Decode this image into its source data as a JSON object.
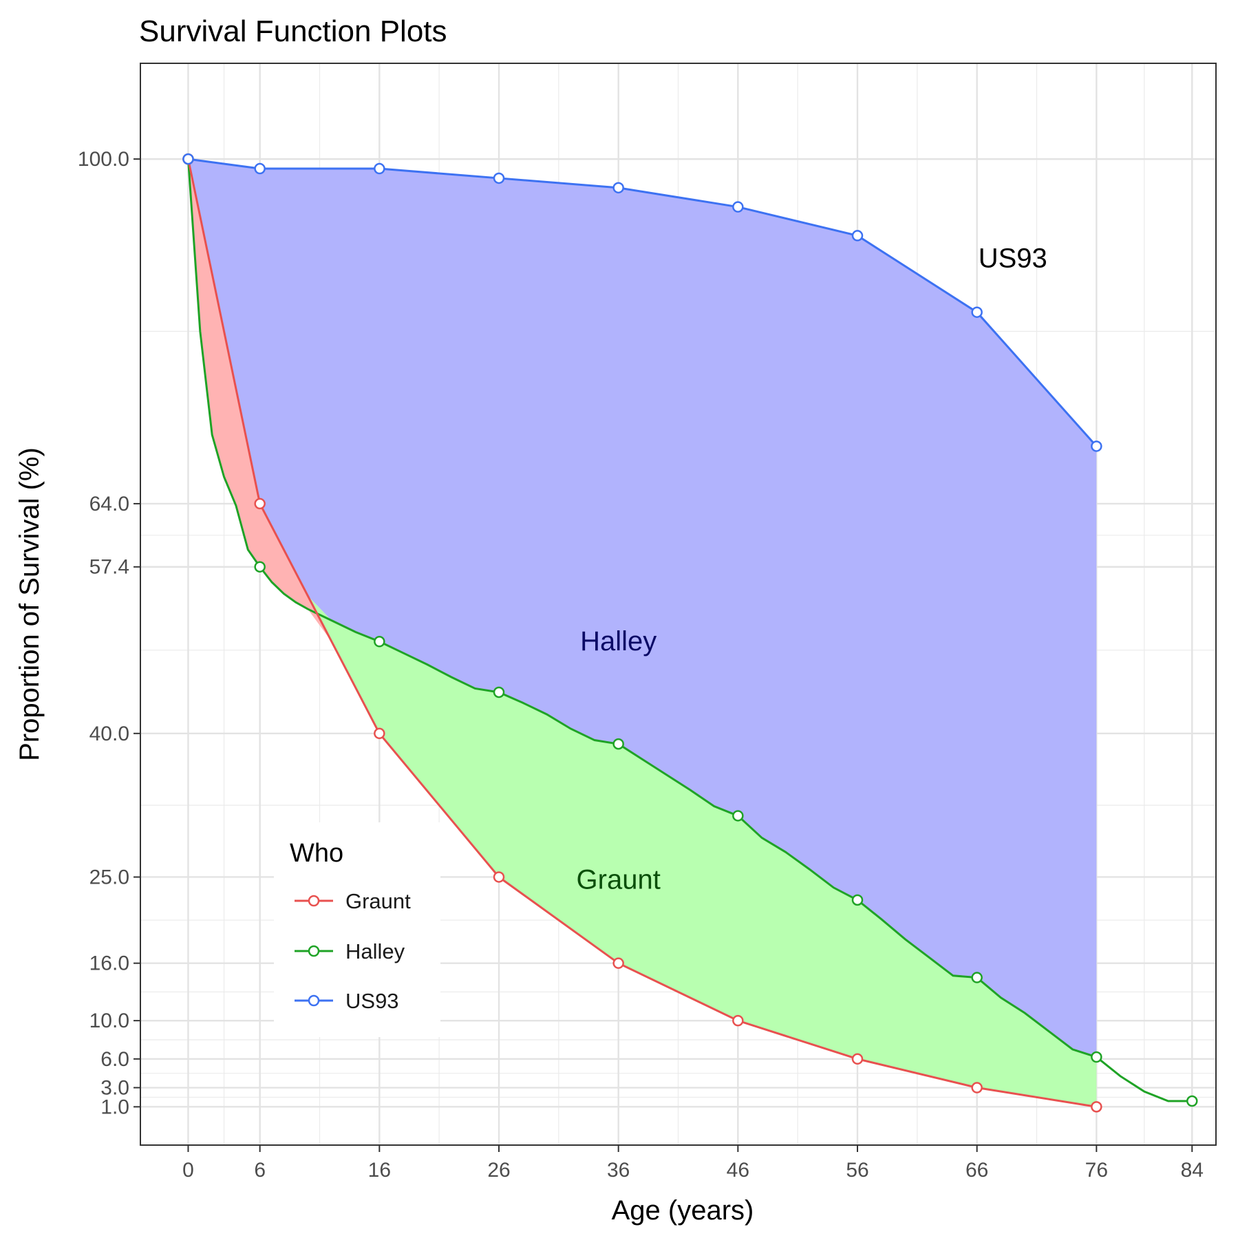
{
  "chart_data": {
    "type": "line",
    "title": "Survival Function Plots",
    "xlabel": "Age (years)",
    "ylabel": "Proportion of Survival (%)",
    "x_ticks": [
      0,
      6,
      16,
      26,
      36,
      46,
      56,
      66,
      76,
      84
    ],
    "y_ticks": [
      100.0,
      64.0,
      57.4,
      40.0,
      25.0,
      16.0,
      10.0,
      6.0,
      3.0,
      1.0
    ],
    "y_tick_labels": [
      "100.0",
      "64.0",
      "57.4",
      "40.0",
      "25.0",
      "16.0",
      "10.0",
      "6.0",
      "3.0",
      "1.0"
    ],
    "xlim": [
      -4,
      86
    ],
    "ylim": [
      -3,
      110
    ],
    "grid": true,
    "legend": {
      "title": "Who",
      "position": "bottom-left",
      "entries": [
        "Graunt",
        "Halley",
        "US93"
      ]
    },
    "series": [
      {
        "name": "Graunt",
        "color": "#e8514f",
        "x": [
          0,
          6,
          16,
          26,
          36,
          46,
          56,
          66,
          76
        ],
        "values": [
          100,
          64,
          40,
          25,
          16,
          10,
          6,
          3,
          1
        ]
      },
      {
        "name": "Halley",
        "color": "#1fa326",
        "x": [
          0,
          1,
          2,
          3,
          4,
          5,
          6,
          7,
          8,
          9,
          10,
          12,
          14,
          16,
          18,
          20,
          22,
          24,
          26,
          28,
          30,
          32,
          34,
          36,
          38,
          40,
          42,
          44,
          46,
          48,
          50,
          52,
          54,
          56,
          58,
          60,
          62,
          64,
          66,
          68,
          70,
          72,
          74,
          76,
          78,
          80,
          82,
          84
        ],
        "values": [
          100,
          82,
          71.2,
          66.8,
          63.8,
          59.2,
          57.4,
          55.8,
          54.6,
          53.7,
          53,
          51.8,
          50.6,
          49.6,
          48.4,
          47.2,
          45.9,
          44.7,
          44.3,
          43.2,
          42,
          40.5,
          39.3,
          38.9,
          37.3,
          35.7,
          34.1,
          32.4,
          31.4,
          29.1,
          27.6,
          25.8,
          23.9,
          22.6,
          20.6,
          18.5,
          16.6,
          14.7,
          14.5,
          12.4,
          10.8,
          8.9,
          7,
          6.2,
          4.2,
          2.6,
          1.6,
          1.6
        ]
      },
      {
        "name": "US93",
        "color": "#3d72f2",
        "x": [
          0,
          6,
          16,
          26,
          36,
          46,
          56,
          66,
          76
        ],
        "values": [
          100,
          99,
          99,
          98,
          97,
          95,
          92,
          84,
          70
        ]
      }
    ],
    "annotations": [
      {
        "text": "US93",
        "x": 69,
        "y": 89.7,
        "color": "#000000"
      },
      {
        "text": "Halley",
        "x": 36,
        "y": 49.7,
        "color": "#0a0a66"
      },
      {
        "text": "Graunt",
        "x": 36,
        "y": 24.8,
        "color": "#0a4f0a"
      }
    ],
    "fill_colors": {
      "graunt_band": "#ffb3b3",
      "halley_band": "#b8ffb0",
      "us93_band": "#b1b3fd"
    }
  }
}
